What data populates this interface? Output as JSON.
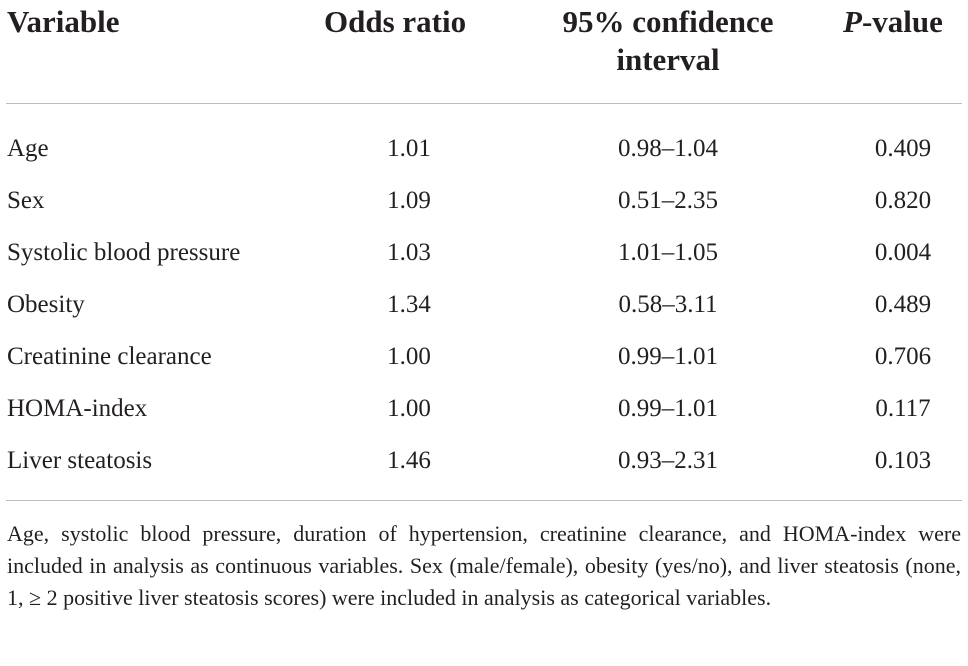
{
  "table": {
    "headers": {
      "variable": "Variable",
      "odds_ratio": "Odds ratio",
      "ci_line1": "95% confidence",
      "ci_line2": "interval",
      "p_italic": "P",
      "p_rest": "-value"
    },
    "rows": [
      {
        "variable": "Age",
        "odds_ratio": "1.01",
        "ci": "0.98–1.04",
        "p": "0.409"
      },
      {
        "variable": "Sex",
        "odds_ratio": "1.09",
        "ci": "0.51–2.35",
        "p": "0.820"
      },
      {
        "variable": "Systolic blood pressure",
        "odds_ratio": "1.03",
        "ci": "1.01–1.05",
        "p": "0.004"
      },
      {
        "variable": "Obesity",
        "odds_ratio": "1.34",
        "ci": "0.58–3.11",
        "p": "0.489"
      },
      {
        "variable": "Creatinine clearance",
        "odds_ratio": "1.00",
        "ci": "0.99–1.01",
        "p": "0.706"
      },
      {
        "variable": "HOMA-index",
        "odds_ratio": "1.00",
        "ci": "0.99–1.01",
        "p": "0.117"
      },
      {
        "variable": "Liver steatosis",
        "odds_ratio": "1.46",
        "ci": "0.93–2.31",
        "p": "0.103"
      }
    ],
    "footnote": "Age, systolic blood pressure, duration of hypertension, creatinine clearance, and HOMA-index were included in analysis as continuous variables. Sex (male/female), obesity (yes/no), and liver steatosis (none, 1, ≥ 2 positive liver steatosis scores) were included in analysis as categorical variables."
  },
  "colors": {
    "text": "#231f20",
    "rule": "#bdbdbd",
    "background": "#ffffff"
  }
}
